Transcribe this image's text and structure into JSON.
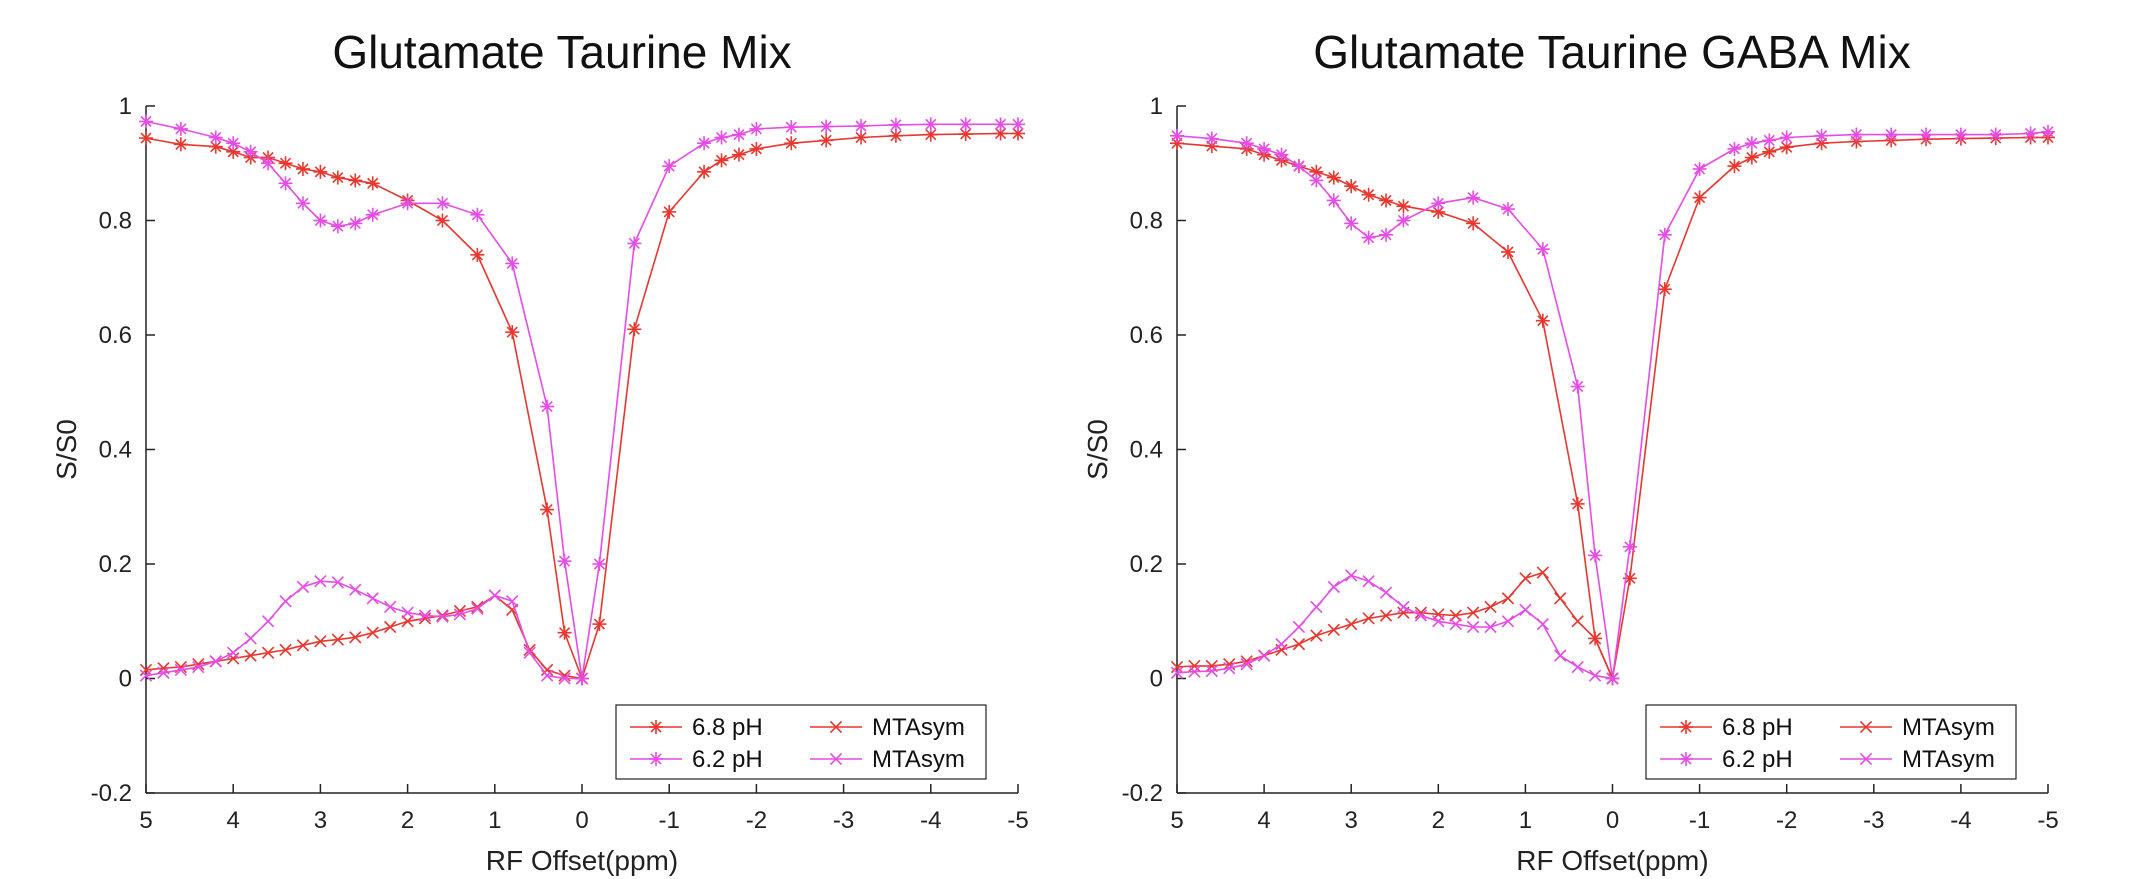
{
  "colors": {
    "ph68": "#e8372f",
    "ph62": "#e64ce6",
    "axis": "#222222"
  },
  "chart_data": [
    {
      "type": "line",
      "title": "Glutamate Taurine Mix",
      "xlabel": "RF Offset(ppm)",
      "ylabel": "S/S0",
      "xlim": [
        5,
        -5
      ],
      "ylim": [
        -0.2,
        1
      ],
      "xticks": [
        "5",
        "4",
        "3",
        "2",
        "1",
        "0",
        "-1",
        "-2",
        "-3",
        "-4",
        "-5"
      ],
      "yticks": [
        "-0.2",
        "0",
        "0.2",
        "0.4",
        "0.6",
        "0.8",
        "1"
      ],
      "legend": [
        "6.8 pH",
        "6.2 pH",
        "MTAsym",
        "MTAsym"
      ],
      "series": [
        {
          "name": "6.8 pH",
          "color": "ph68",
          "marker": "asterisk",
          "x": [
            5,
            4.6,
            4.2,
            4.0,
            3.8,
            3.6,
            3.4,
            3.2,
            3.0,
            2.8,
            2.6,
            2.4,
            2.0,
            1.6,
            1.2,
            0.8,
            0.4,
            0.2,
            0,
            -0.2,
            -0.6,
            -1.0,
            -1.4,
            -1.6,
            -1.8,
            -2.0,
            -2.4,
            -2.8,
            -3.2,
            -3.6,
            -4.0,
            -4.4,
            -4.8,
            -5
          ],
          "y": [
            0.944,
            0.933,
            0.929,
            0.92,
            0.91,
            0.91,
            0.9,
            0.89,
            0.885,
            0.875,
            0.87,
            0.865,
            0.835,
            0.8,
            0.74,
            0.605,
            0.295,
            0.08,
            0.0,
            0.095,
            0.61,
            0.815,
            0.885,
            0.905,
            0.915,
            0.925,
            0.935,
            0.94,
            0.945,
            0.948,
            0.95,
            0.951,
            0.952,
            0.952
          ]
        },
        {
          "name": "6.2 pH",
          "color": "ph62",
          "marker": "asterisk",
          "x": [
            5,
            4.6,
            4.2,
            4.0,
            3.8,
            3.6,
            3.4,
            3.2,
            3.0,
            2.8,
            2.6,
            2.4,
            2.0,
            1.6,
            1.2,
            0.8,
            0.4,
            0.2,
            0,
            -0.2,
            -0.6,
            -1.0,
            -1.4,
            -1.6,
            -1.8,
            -2.0,
            -2.4,
            -2.8,
            -3.2,
            -3.6,
            -4.0,
            -4.4,
            -4.8,
            -5
          ],
          "y": [
            0.973,
            0.96,
            0.945,
            0.935,
            0.92,
            0.9,
            0.865,
            0.83,
            0.8,
            0.79,
            0.795,
            0.81,
            0.83,
            0.83,
            0.81,
            0.725,
            0.475,
            0.205,
            0.0,
            0.2,
            0.76,
            0.895,
            0.935,
            0.945,
            0.95,
            0.96,
            0.963,
            0.964,
            0.965,
            0.967,
            0.968,
            0.968,
            0.968,
            0.968
          ]
        },
        {
          "name": "MTAsym",
          "color": "ph68",
          "marker": "x",
          "x": [
            5,
            4.8,
            4.6,
            4.4,
            4.2,
            4.0,
            3.8,
            3.6,
            3.4,
            3.2,
            3.0,
            2.8,
            2.6,
            2.4,
            2.2,
            2.0,
            1.8,
            1.6,
            1.4,
            1.2,
            1.0,
            0.8,
            0.6,
            0.4,
            0.2,
            0
          ],
          "y": [
            0.015,
            0.018,
            0.02,
            0.025,
            0.03,
            0.035,
            0.04,
            0.045,
            0.05,
            0.058,
            0.065,
            0.068,
            0.072,
            0.08,
            0.09,
            0.1,
            0.105,
            0.11,
            0.118,
            0.125,
            0.145,
            0.12,
            0.05,
            0.015,
            0.005,
            0.0
          ]
        },
        {
          "name": "MTAsym",
          "color": "ph62",
          "marker": "x",
          "x": [
            5,
            4.8,
            4.6,
            4.4,
            4.2,
            4.0,
            3.8,
            3.6,
            3.4,
            3.2,
            3.0,
            2.8,
            2.6,
            2.4,
            2.2,
            2.0,
            1.8,
            1.6,
            1.4,
            1.2,
            1.0,
            0.8,
            0.6,
            0.4,
            0.2,
            0
          ],
          "y": [
            0.005,
            0.01,
            0.015,
            0.02,
            0.03,
            0.045,
            0.07,
            0.1,
            0.135,
            0.16,
            0.17,
            0.168,
            0.155,
            0.14,
            0.125,
            0.115,
            0.11,
            0.108,
            0.112,
            0.122,
            0.145,
            0.135,
            0.045,
            0.005,
            0.0,
            0.0
          ]
        }
      ]
    },
    {
      "type": "line",
      "title": "Glutamate Taurine GABA Mix",
      "xlabel": "RF Offset(ppm)",
      "ylabel": "S/S0",
      "xlim": [
        5,
        -5
      ],
      "ylim": [
        -0.2,
        1
      ],
      "xticks": [
        "5",
        "4",
        "3",
        "2",
        "1",
        "0",
        "-1",
        "-2",
        "-3",
        "-4",
        "-5"
      ],
      "yticks": [
        "-0.2",
        "0",
        "0.2",
        "0.4",
        "0.6",
        "0.8",
        "1"
      ],
      "legend": [
        "6.8 pH",
        "6.2 pH",
        "MTAsym",
        "MTAsym"
      ],
      "series": [
        {
          "name": "6.8 pH",
          "color": "ph68",
          "marker": "asterisk",
          "x": [
            5,
            4.6,
            4.2,
            4.0,
            3.8,
            3.6,
            3.4,
            3.2,
            3.0,
            2.8,
            2.6,
            2.4,
            2.0,
            1.6,
            1.2,
            0.8,
            0.4,
            0.2,
            0,
            -0.2,
            -0.6,
            -1.0,
            -1.4,
            -1.6,
            -1.8,
            -2.0,
            -2.4,
            -2.8,
            -3.2,
            -3.6,
            -4.0,
            -4.4,
            -4.8,
            -5
          ],
          "y": [
            0.935,
            0.93,
            0.925,
            0.915,
            0.905,
            0.895,
            0.885,
            0.875,
            0.86,
            0.845,
            0.835,
            0.825,
            0.815,
            0.795,
            0.745,
            0.625,
            0.305,
            0.07,
            0.0,
            0.175,
            0.68,
            0.84,
            0.895,
            0.91,
            0.92,
            0.928,
            0.935,
            0.938,
            0.94,
            0.942,
            0.943,
            0.944,
            0.945,
            0.945
          ]
        },
        {
          "name": "6.2 pH",
          "color": "ph62",
          "marker": "asterisk",
          "x": [
            5,
            4.6,
            4.2,
            4.0,
            3.8,
            3.6,
            3.4,
            3.2,
            3.0,
            2.8,
            2.6,
            2.4,
            2.0,
            1.6,
            1.2,
            0.8,
            0.4,
            0.2,
            0,
            -0.2,
            -0.6,
            -1.0,
            -1.4,
            -1.6,
            -1.8,
            -2.0,
            -2.4,
            -2.8,
            -3.2,
            -3.6,
            -4.0,
            -4.4,
            -4.8,
            -5
          ],
          "y": [
            0.948,
            0.943,
            0.935,
            0.925,
            0.915,
            0.895,
            0.87,
            0.835,
            0.795,
            0.77,
            0.775,
            0.8,
            0.83,
            0.84,
            0.82,
            0.75,
            0.51,
            0.215,
            0.0,
            0.23,
            0.775,
            0.89,
            0.925,
            0.935,
            0.94,
            0.945,
            0.948,
            0.95,
            0.95,
            0.95,
            0.95,
            0.95,
            0.952,
            0.955
          ]
        },
        {
          "name": "MTAsym",
          "color": "ph68",
          "marker": "x",
          "x": [
            5,
            4.8,
            4.6,
            4.4,
            4.2,
            4.0,
            3.8,
            3.6,
            3.4,
            3.2,
            3.0,
            2.8,
            2.6,
            2.4,
            2.2,
            2.0,
            1.8,
            1.6,
            1.4,
            1.2,
            1.0,
            0.8,
            0.6,
            0.4,
            0.2,
            0
          ],
          "y": [
            0.02,
            0.022,
            0.022,
            0.025,
            0.03,
            0.04,
            0.05,
            0.06,
            0.075,
            0.085,
            0.095,
            0.105,
            0.11,
            0.115,
            0.115,
            0.112,
            0.11,
            0.115,
            0.125,
            0.14,
            0.175,
            0.185,
            0.14,
            0.1,
            0.07,
            0.0
          ]
        },
        {
          "name": "MTAsym",
          "color": "ph62",
          "marker": "x",
          "x": [
            5,
            4.8,
            4.6,
            4.4,
            4.2,
            4.0,
            3.8,
            3.6,
            3.4,
            3.2,
            3.0,
            2.8,
            2.6,
            2.4,
            2.2,
            2.0,
            1.8,
            1.6,
            1.4,
            1.2,
            1.0,
            0.8,
            0.6,
            0.4,
            0.2,
            0
          ],
          "y": [
            0.01,
            0.012,
            0.013,
            0.018,
            0.025,
            0.04,
            0.06,
            0.09,
            0.125,
            0.16,
            0.18,
            0.17,
            0.15,
            0.125,
            0.11,
            0.1,
            0.095,
            0.09,
            0.09,
            0.1,
            0.12,
            0.095,
            0.04,
            0.02,
            0.005,
            0.0
          ]
        }
      ]
    }
  ]
}
